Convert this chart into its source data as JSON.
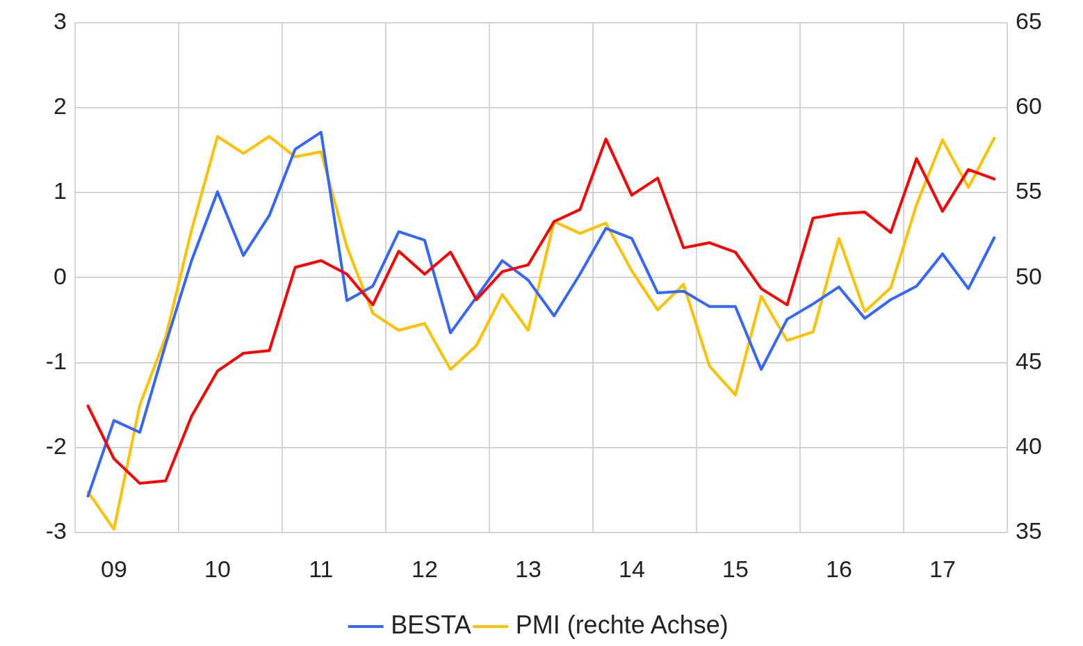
{
  "chart_data": {
    "type": "line",
    "categories": [
      null,
      "09",
      null,
      null,
      null,
      "10",
      null,
      null,
      null,
      "11",
      null,
      null,
      null,
      "12",
      null,
      null,
      null,
      "13",
      null,
      null,
      null,
      "14",
      null,
      null,
      null,
      "15",
      null,
      null,
      null,
      "16",
      null,
      null,
      null,
      "17",
      null,
      null
    ],
    "ylim": [
      -3,
      3
    ],
    "yticks": [
      -3,
      -2,
      -1,
      0,
      1,
      2,
      3
    ],
    "y2lim": [
      35,
      65
    ],
    "y2ticks": [
      35,
      40,
      45,
      50,
      55,
      60,
      65
    ],
    "grid": true,
    "legend": "bottom",
    "marker": "none",
    "line_style": "solid",
    "series": [
      {
        "color": "#ff0000",
        "values": [
          -1.51,
          -2.13,
          -2.42,
          -2.39,
          -1.63,
          -1.1,
          -0.89,
          -0.86,
          0.12,
          0.2,
          0.04,
          -0.32,
          0.31,
          0.04,
          0.3,
          -0.26,
          0.07,
          0.15,
          0.66,
          0.8,
          1.63,
          0.97,
          1.17,
          0.35,
          0.41,
          0.3,
          -0.13,
          -0.32,
          0.7,
          0.75,
          0.77,
          0.53,
          1.4,
          0.78,
          1.27,
          1.16
        ]
      },
      {
        "name": "BESTA",
        "color": "#3366ff",
        "values": [
          -2.57,
          -1.68,
          -1.82,
          -0.78,
          0.2,
          1.01,
          0.26,
          0.73,
          1.51,
          1.71,
          -0.27,
          -0.1,
          0.54,
          0.44,
          -0.65,
          -0.23,
          0.2,
          -0.03,
          -0.45,
          0.04,
          0.58,
          0.46,
          -0.18,
          -0.16,
          -0.34,
          -0.34,
          -1.08,
          -0.49,
          -0.31,
          -0.11,
          -0.48,
          -0.26,
          -0.1,
          0.28,
          -0.13,
          0.47
        ]
      },
      {
        "name": "PMI (rechte Achse)",
        "color": "#ffc000",
        "axis": "y2",
        "values": [
          37.4,
          35.2,
          42.5,
          46.5,
          52.8,
          58.3,
          57.3,
          58.3,
          57.1,
          57.4,
          51.8,
          47.9,
          46.9,
          47.3,
          44.6,
          46.0,
          49.0,
          46.9,
          53.3,
          52.6,
          53.2,
          50.4,
          48.1,
          49.6,
          44.8,
          43.1,
          48.9,
          46.3,
          46.8,
          52.3,
          48.0,
          49.4,
          54.3,
          58.1,
          55.3,
          58.2
        ]
      }
    ]
  }
}
